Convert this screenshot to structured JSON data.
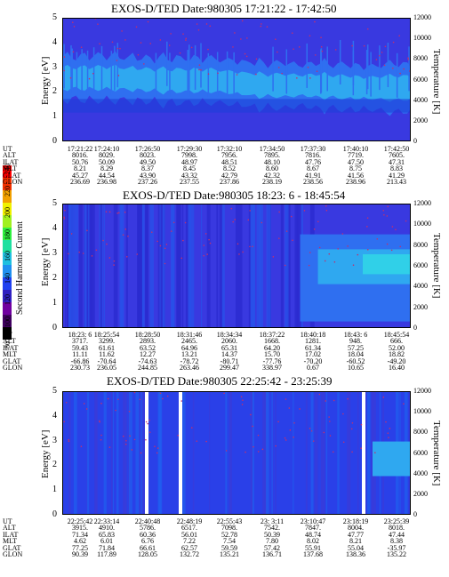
{
  "colors": {
    "background": "#3939e0",
    "band_outer": "#2f6ff0",
    "band_inner": "#2fa8f0",
    "band_core": "#1e3fd8",
    "dots": "#c03070",
    "gap": "#ffffff"
  },
  "colorbar": {
    "title": "Second Harmonic Current",
    "ticks": [
      "80",
      "100",
      "120",
      "140",
      "160",
      "180",
      "200",
      "220",
      "240"
    ],
    "colors": [
      "#000000",
      "#400060",
      "#7000a0",
      "#3020c0",
      "#2040f0",
      "#2090f0",
      "#20c0e0",
      "#20e0a0",
      "#30f040",
      "#a0f020",
      "#f0f000",
      "#f0a000",
      "#f03000",
      "#ff0000"
    ]
  },
  "table_labels": [
    "UT",
    "ALT",
    "ILAT",
    "MLT",
    "GLAT",
    "GLON"
  ],
  "chart_data": [
    {
      "type": "heatmap",
      "title": "EXOS-D/TED   Date:980305  17:21:22 - 17:42:50",
      "ylabel": "Energy [eV]",
      "y2label": "Temperature [K]",
      "ylim": [
        0,
        5
      ],
      "y2lim": [
        0,
        12000
      ],
      "yticks": [
        "5",
        "4",
        "3",
        "2",
        "1",
        "0"
      ],
      "y2ticks": [
        "12000",
        "10000",
        "8000",
        "6000",
        "4000",
        "2000",
        "0"
      ],
      "band_center_eV": [
        2.6,
        2.6,
        2.5,
        2.5,
        2.3,
        2.3,
        2.2,
        2.2
      ],
      "table": {
        "UT": [
          "17:21:22",
          "17:24:10",
          "17:26:50",
          "17:29:30",
          "17:32:10",
          "17:34:50",
          "17:37:30",
          "17:40:10",
          "17:42:50"
        ],
        "ALT": [
          "8016.",
          "8029.",
          "8023.",
          "7998.",
          "7956.",
          "7895.",
          "7816.",
          "7719.",
          "7605."
        ],
        "ILAT": [
          "50.76",
          "50.09",
          "49.50",
          "48.97",
          "48.51",
          "48.10",
          "47.76",
          "47.50",
          "47.31"
        ],
        "MLT": [
          "8.21",
          "8.29",
          "8.37",
          "8.45",
          "8.52",
          "8.60",
          "8.67",
          "8.75",
          "8.83"
        ],
        "GLAT": [
          "45.27",
          "44.54",
          "43.90",
          "43.32",
          "42.79",
          "42.32",
          "41.91",
          "41.56",
          "41.29"
        ],
        "GLON": [
          "236.69",
          "236.98",
          "237.26",
          "237.55",
          "237.86",
          "238.19",
          "238.56",
          "238.96",
          "213.43"
        ]
      }
    },
    {
      "type": "heatmap",
      "title": "EXOS-D/TED   Date:980305  18:23: 6 - 18:45:54",
      "ylabel": "Energy [eV]",
      "y2label": "Temperature [K]",
      "ylim": [
        0,
        5
      ],
      "y2lim": [
        0,
        12000
      ],
      "yticks": [
        "5",
        "4",
        "3",
        "2",
        "1",
        "0"
      ],
      "y2ticks": [
        "12000",
        "10000",
        "8000",
        "6000",
        "4000",
        "2000",
        "0"
      ],
      "table": {
        "UT": [
          "18:23: 6",
          "18:25:54",
          "18:28:50",
          "18:31:46",
          "18:34:34",
          "18:37:22",
          "18:40:18",
          "18:43: 6",
          "18:45:54"
        ],
        "ALT": [
          "3717.",
          "3299.",
          "2893.",
          "2465.",
          "2060.",
          "1668.",
          "1281.",
          "948.",
          "666."
        ],
        "ILAT": [
          "59.43",
          "61.61",
          "63.52",
          "64.96",
          "65.31",
          "64.20",
          "61.34",
          "57.25",
          "52.00"
        ],
        "MLT": [
          "11.11",
          "11.62",
          "12.27",
          "13.21",
          "14.37",
          "15.70",
          "17.02",
          "18.04",
          "18.82"
        ],
        "GLAT": [
          "-66.86",
          "-70.64",
          "-74.63",
          "-78.72",
          "-80.71",
          "-77.76",
          "-70.20",
          "-60.52",
          "-49.20"
        ],
        "GLON": [
          "230.73",
          "236.05",
          "244.85",
          "263.46",
          "299.47",
          "338.97",
          "0.67",
          "10.65",
          "16.40"
        ]
      }
    },
    {
      "type": "heatmap",
      "title": "EXOS-D/TED   Date:980305  22:25:42 - 23:25:39",
      "ylabel": "Energy [eV]",
      "y2label": "Temperature [K]",
      "ylim": [
        0,
        5
      ],
      "y2lim": [
        0,
        12000
      ],
      "yticks": [
        "5",
        "4",
        "3",
        "2",
        "1",
        "0"
      ],
      "y2ticks": [
        "12000",
        "10000",
        "8000",
        "6000",
        "4000",
        "2000",
        "0"
      ],
      "table": {
        "UT": [
          "22:25:42",
          "22:33:14",
          "22:40:48",
          "22:48:19",
          "22:55:43",
          "23: 3:11",
          "23:10:47",
          "23:18:19",
          "23:25:39"
        ],
        "ALT": [
          "3915.",
          "4910.",
          "5786.",
          "6517.",
          "7098.",
          "7542.",
          "7847.",
          "8004.",
          "8018."
        ],
        "ILAT": [
          "71.34",
          "65.83",
          "60.36",
          "56.01",
          "52.78",
          "50.39",
          "48.74",
          "47.77",
          "47.44"
        ],
        "MLT": [
          "4.62",
          "6.01",
          "6.76",
          "7.22",
          "7.54",
          "7.80",
          "8.02",
          "8.21",
          "8.38"
        ],
        "GLAT": [
          "77.25",
          "71.84",
          "66.61",
          "62.57",
          "59.59",
          "57.42",
          "55.91",
          "55.04",
          "-35.97"
        ],
        "GLON": [
          "90.39",
          "117.89",
          "128.05",
          "132.72",
          "135.21",
          "136.71",
          "137.68",
          "138.36",
          "135.22"
        ]
      }
    }
  ]
}
